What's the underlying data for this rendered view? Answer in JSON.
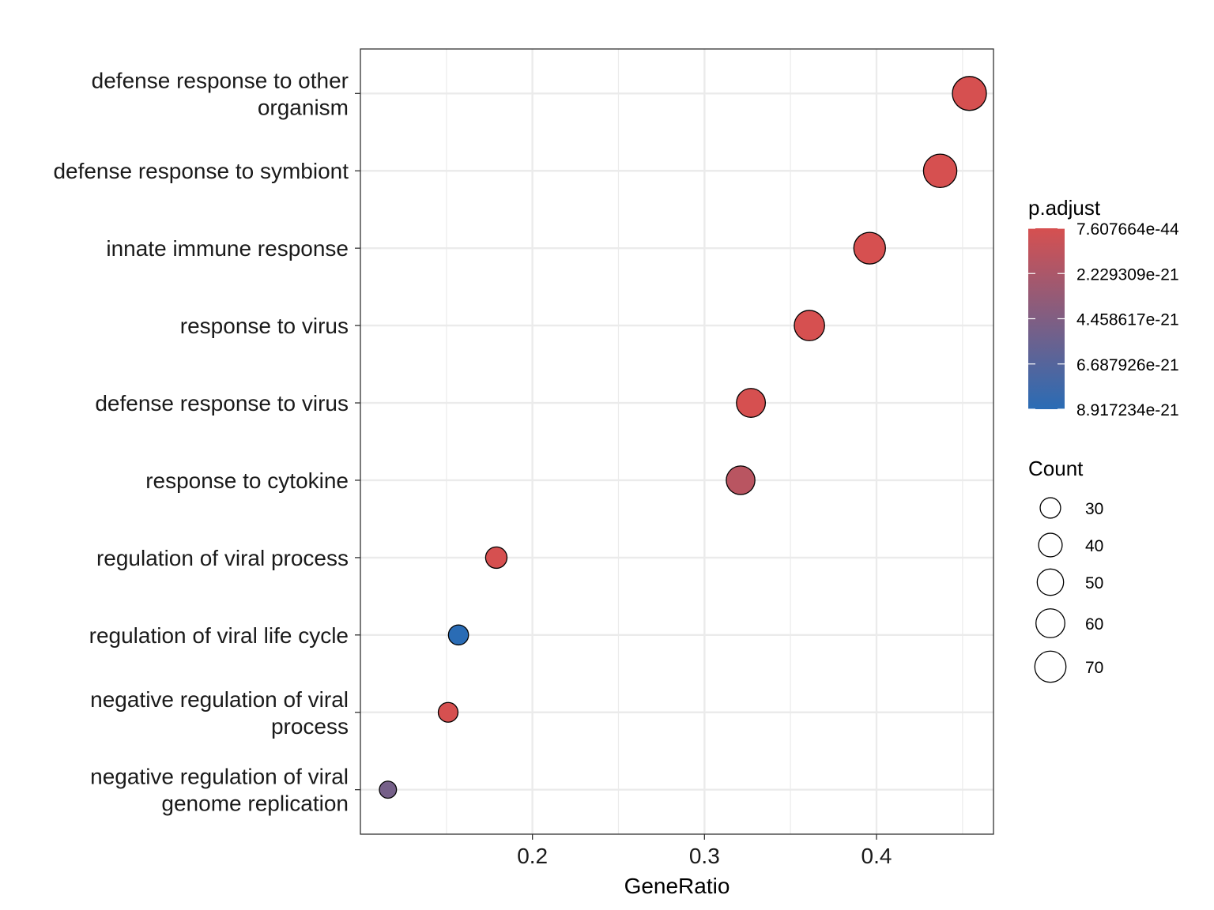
{
  "chart_data": {
    "type": "scatter",
    "xlabel": "GeneRatio",
    "ylabel": "",
    "xlim": [
      0.1,
      0.468
    ],
    "x_ticks": [
      0.2,
      0.3,
      0.4
    ],
    "x_tick_labels": [
      "0.2",
      "0.3",
      "0.4"
    ],
    "grid": true,
    "categories": [
      "negative regulation of viral genome replication",
      "negative regulation of viral process",
      "regulation of viral life cycle",
      "regulation of viral process",
      "response to cytokine",
      "defense response to virus",
      "response to virus",
      "innate immune response",
      "defense response to symbiont",
      "defense response to other organism"
    ],
    "category_labels": [
      [
        "negative regulation of viral",
        "genome replication"
      ],
      [
        "negative regulation of viral",
        "process"
      ],
      [
        "regulation of viral life cycle"
      ],
      [
        "regulation of viral process"
      ],
      [
        "response to cytokine"
      ],
      [
        "defense response to virus"
      ],
      [
        "response to virus"
      ],
      [
        "innate immune response"
      ],
      [
        "defense response to symbiont"
      ],
      [
        "defense response to other",
        "organism"
      ]
    ],
    "points": [
      {
        "term": "negative regulation of viral genome replication",
        "gene_ratio": 0.116,
        "count": 21,
        "p_adjust": 5e-21
      },
      {
        "term": "negative regulation of viral process",
        "gene_ratio": 0.151,
        "count": 28,
        "p_adjust": 5e-25
      },
      {
        "term": "regulation of viral life cycle",
        "gene_ratio": 0.157,
        "count": 29,
        "p_adjust": 8.917234e-21
      },
      {
        "term": "regulation of viral process",
        "gene_ratio": 0.179,
        "count": 33,
        "p_adjust": 1e-26
      },
      {
        "term": "response to cytokine",
        "gene_ratio": 0.321,
        "count": 59,
        "p_adjust": 1.5e-21
      },
      {
        "term": "defense response to virus",
        "gene_ratio": 0.327,
        "count": 60,
        "p_adjust": 1e-35
      },
      {
        "term": "response to virus",
        "gene_ratio": 0.361,
        "count": 66,
        "p_adjust": 1e-38
      },
      {
        "term": "innate immune response",
        "gene_ratio": 0.396,
        "count": 72,
        "p_adjust": 1e-40
      },
      {
        "term": "defense response to symbiont",
        "gene_ratio": 0.437,
        "count": 80,
        "p_adjust": 1e-42
      },
      {
        "term": "defense response to other organism",
        "gene_ratio": 0.454,
        "count": 83,
        "p_adjust": 7.607664e-44
      }
    ],
    "color_legend": {
      "title": "p.adjust",
      "labels": [
        "7.607664e-44",
        "2.229309e-21",
        "4.458617e-21",
        "6.687926e-21",
        "8.917234e-21"
      ],
      "values": [
        7.607664e-44,
        2.229309e-21,
        4.458617e-21,
        6.687926e-21,
        8.917234e-21
      ],
      "low_color": "#d65050",
      "high_color": "#2a6cb5"
    },
    "size_legend": {
      "title": "Count",
      "labels": [
        "30",
        "40",
        "50",
        "60",
        "70"
      ],
      "values": [
        30,
        40,
        50,
        60,
        70
      ]
    }
  }
}
